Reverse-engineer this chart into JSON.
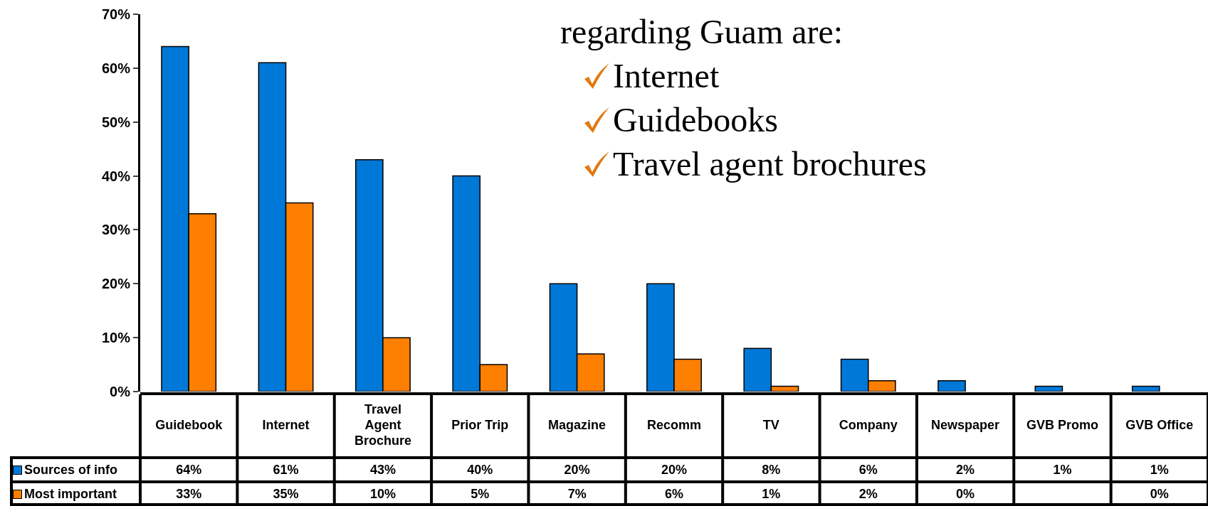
{
  "chart_data": {
    "type": "bar",
    "categories": [
      "Guidebook",
      "Internet",
      "Travel Agent Brochure",
      "Prior Trip",
      "Magazine",
      "Recomm",
      "TV",
      "Company",
      "Newspaper",
      "GVB Promo",
      "GVB Office"
    ],
    "series": [
      {
        "name": "Sources of info",
        "color": "#0078d7",
        "values": [
          64,
          61,
          43,
          40,
          20,
          20,
          8,
          6,
          2,
          1,
          1
        ],
        "value_labels": [
          "64%",
          "61%",
          "43%",
          "40%",
          "20%",
          "20%",
          "8%",
          "6%",
          "2%",
          "1%",
          "1%"
        ]
      },
      {
        "name": "Most important",
        "color": "#ff7f00",
        "values": [
          33,
          35,
          10,
          5,
          7,
          6,
          1,
          2,
          0,
          null,
          0
        ],
        "value_labels": [
          "33%",
          "35%",
          "10%",
          "5%",
          "7%",
          "6%",
          "1%",
          "2%",
          "0%",
          null,
          "0%"
        ]
      }
    ],
    "ylim": [
      0,
      70
    ],
    "yticks": [
      {
        "value": 0,
        "label": "0%"
      },
      {
        "value": 10,
        "label": "10%"
      },
      {
        "value": 20,
        "label": "20%"
      },
      {
        "value": 30,
        "label": "30%"
      },
      {
        "value": 40,
        "label": "40%"
      },
      {
        "value": 50,
        "label": "50%"
      },
      {
        "value": 60,
        "label": "60%"
      },
      {
        "value": 70,
        "label": "70%"
      }
    ],
    "grid": false,
    "legend": "bottom left",
    "annotations": [
      "regarding Guam are:",
      "Internet",
      "Guidebooks",
      "Travel agent brochures"
    ]
  }
}
